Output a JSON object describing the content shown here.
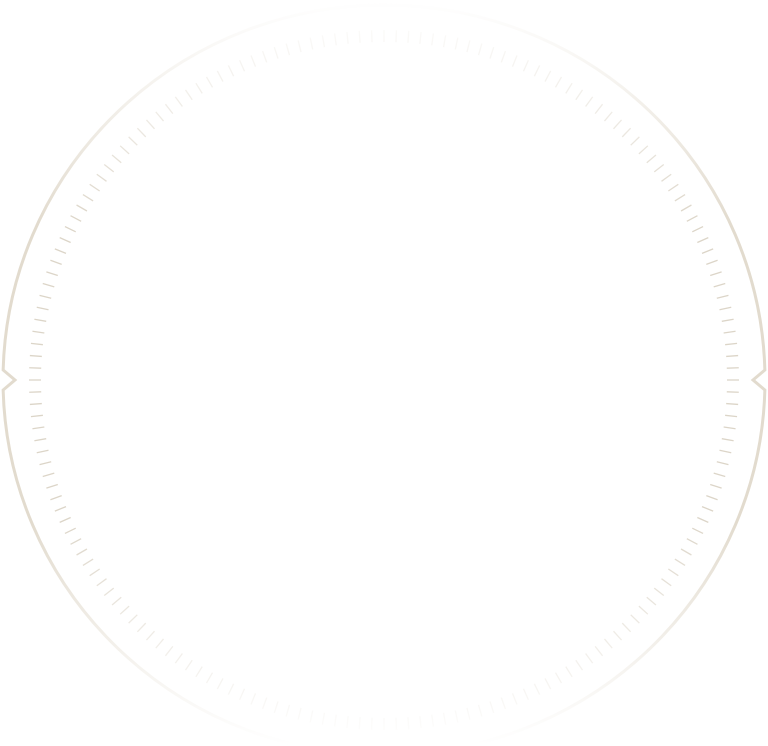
{
  "frame": {
    "type": "decorative-circular-dial-frame",
    "stroke_color": "#e2dbce",
    "tick_color": "#dcd5c8",
    "background": "#ffffff",
    "tick_count": 180,
    "side_notches": [
      "left",
      "right"
    ]
  }
}
